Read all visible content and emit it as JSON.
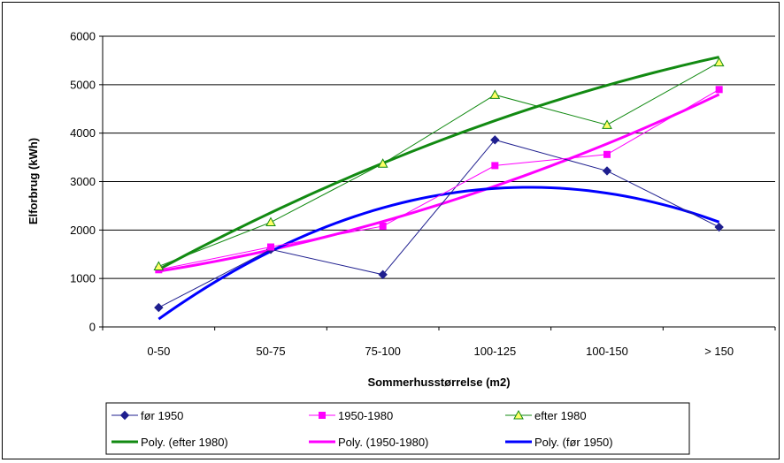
{
  "chart_data": {
    "type": "line",
    "title": "",
    "xlabel": "Sommerhusstørrelse (m2)",
    "ylabel": "Elforbrug (kWh)",
    "categories": [
      "0-50",
      "50-75",
      "75-100",
      "100-125",
      "100-150",
      "> 150"
    ],
    "ylim": [
      0,
      6000
    ],
    "yticks": [
      0,
      1000,
      2000,
      3000,
      4000,
      5000,
      6000
    ],
    "grid": true,
    "legend_position": "bottom",
    "series": [
      {
        "name": "før 1950",
        "values": [
          400,
          1600,
          1080,
          3860,
          3220,
          2060
        ],
        "color": "#1F1F8F",
        "marker": "diamond"
      },
      {
        "name": "1950-1980",
        "values": [
          1180,
          1650,
          2080,
          3330,
          3560,
          4900
        ],
        "color": "#FF00FF",
        "marker": "square"
      },
      {
        "name": "efter 1980",
        "values": [
          1250,
          2160,
          3370,
          4790,
          4170,
          5460
        ],
        "color": "#128A12",
        "marker": "triangle"
      }
    ],
    "trendlines": [
      {
        "name": "Poly. (efter 1980)",
        "type": "polynomial",
        "order": 2,
        "values": [
          1187,
          2357,
          3380,
          4257,
          4987,
          5570
        ],
        "color": "#128A12"
      },
      {
        "name": "Poly. (1950-1980)",
        "type": "polynomial",
        "order": 2,
        "values": [
          1148,
          1590,
          2176,
          2906,
          3780,
          4799
        ],
        "color": "#FF00FF"
      },
      {
        "name": "Poly. (før 1950)",
        "type": "polynomial",
        "order": 2,
        "values": [
          163,
          1560,
          2459,
          2859,
          2761,
          2165
        ],
        "color": "#0000FF"
      }
    ],
    "legend": [
      [
        "før 1950",
        "1950-1980",
        "efter 1980"
      ],
      [
        "Poly. (efter 1980)",
        "Poly. (1950-1980)",
        "Poly. (før 1950)"
      ]
    ]
  }
}
